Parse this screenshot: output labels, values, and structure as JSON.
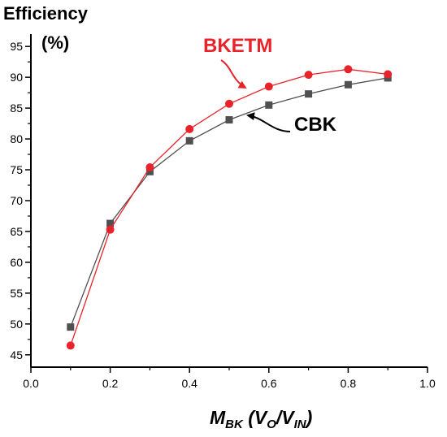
{
  "chart_data": {
    "type": "line",
    "ylabel_line1": "Efficiency",
    "ylabel_line2": "(%)",
    "xlabel": {
      "main": "M",
      "main_sub": "BK",
      "paren_open": " (V",
      "v_o_sub": "O",
      "slash": "/V",
      "v_in_sub": "IN",
      "paren_close": ")"
    },
    "xlim": [
      0.0,
      1.0
    ],
    "ylim": [
      43,
      97
    ],
    "xticks": [
      0.0,
      0.2,
      0.4,
      0.6,
      0.8,
      1.0
    ],
    "xtick_labels": [
      "0.0",
      "0.2",
      "0.4",
      "0.6",
      "0.8",
      "1.0"
    ],
    "yticks": [
      45,
      50,
      55,
      60,
      65,
      70,
      75,
      80,
      85,
      90,
      95
    ],
    "ytick_labels": [
      "45",
      "50",
      "55",
      "60",
      "65",
      "70",
      "75",
      "80",
      "85",
      "90",
      "95"
    ],
    "grid": false,
    "series": [
      {
        "name": "BKETM",
        "color": "#e8232a",
        "marker": "circle",
        "x": [
          0.1,
          0.2,
          0.3,
          0.4,
          0.5,
          0.6,
          0.7,
          0.8,
          0.9
        ],
        "y": [
          46.5,
          65.3,
          75.4,
          81.6,
          85.7,
          88.5,
          90.4,
          91.3,
          90.5
        ]
      },
      {
        "name": "CBK",
        "color": "#505050",
        "marker": "square",
        "x": [
          0.1,
          0.2,
          0.3,
          0.4,
          0.5,
          0.6,
          0.7,
          0.8,
          0.9
        ],
        "y": [
          49.5,
          66.3,
          74.7,
          79.7,
          83.1,
          85.5,
          87.3,
          88.8,
          89.9
        ]
      }
    ],
    "annotations": [
      {
        "text": "BKETM",
        "color": "#e8232a"
      },
      {
        "text": "CBK",
        "color": "#000000"
      }
    ]
  }
}
